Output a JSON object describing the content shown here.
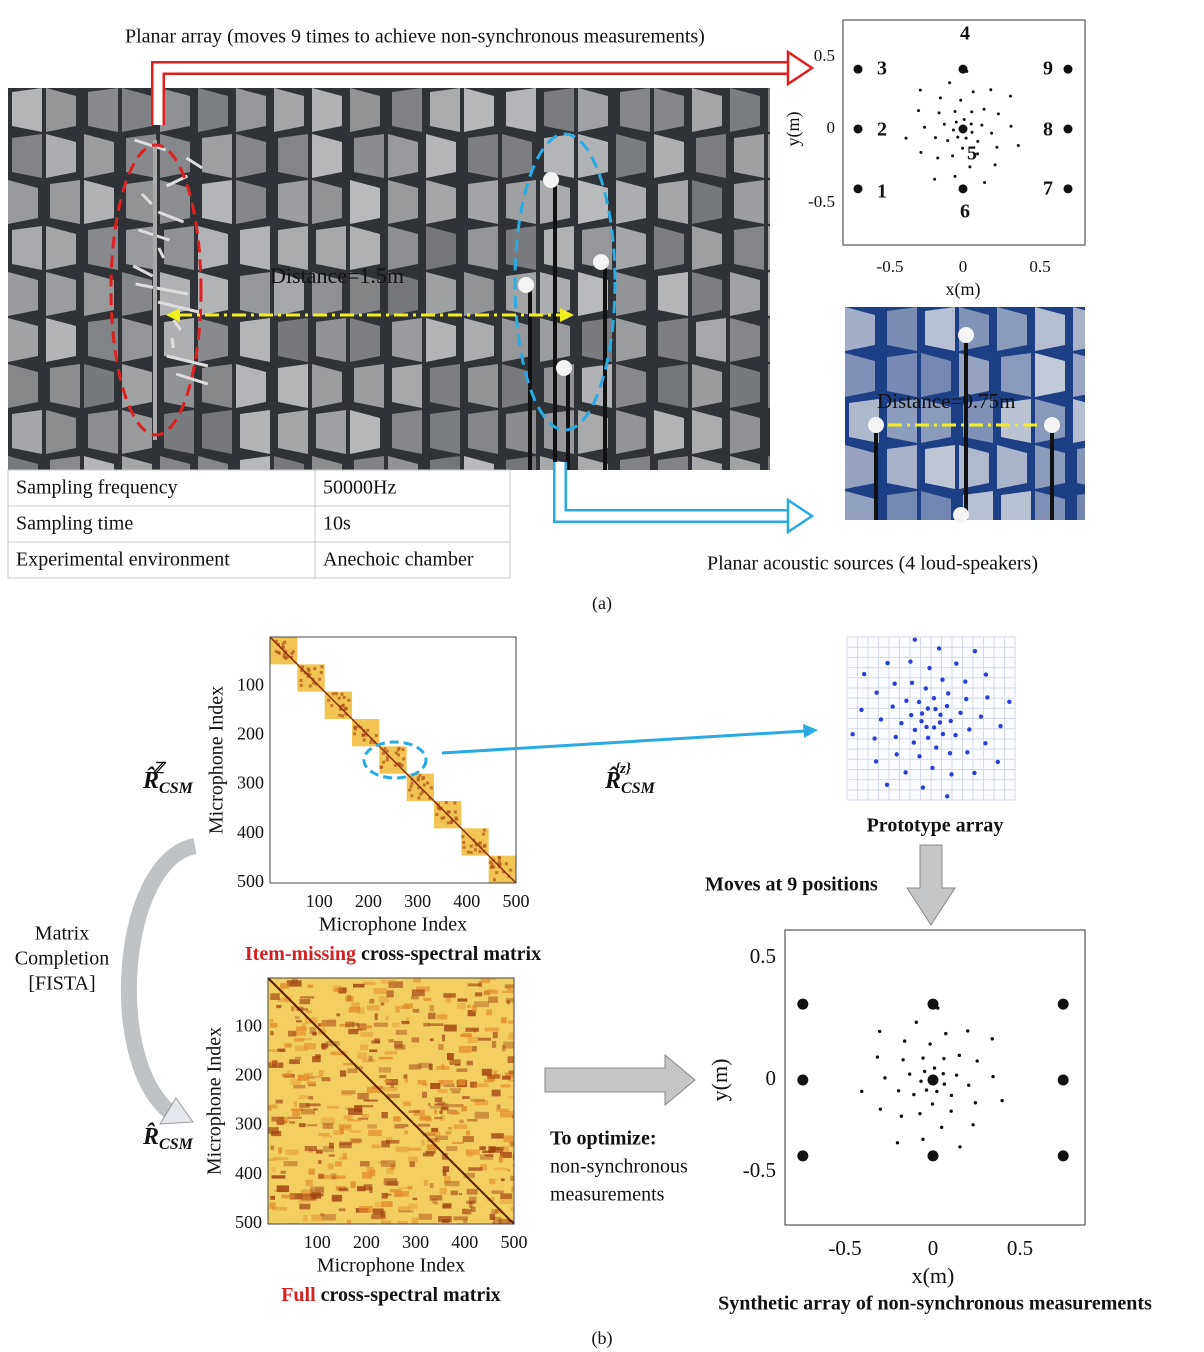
{
  "panel_a": {
    "array_caption": "Planar array (moves 9 times to achieve non-synchronous measurements)",
    "distance_label": "Distance=1.5m",
    "table": {
      "rows": [
        [
          "Sampling frequency",
          "50000Hz"
        ],
        [
          "Sampling time",
          "10s"
        ],
        [
          "Experimental environment",
          "Anechoic chamber"
        ]
      ]
    },
    "array_plot": {
      "xticks": [
        "-0.5",
        "0",
        "0.5"
      ],
      "yticks": [
        "0.5",
        "0",
        "-0.5"
      ],
      "xlabel": "x(m)",
      "ylabel": "y(m)",
      "position_labels": [
        "1",
        "2",
        "3",
        "4",
        "5",
        "6",
        "7",
        "8",
        "9"
      ]
    },
    "source_distance_label": "Distance=0.75m",
    "sources_caption": "Planar acoustic sources (4 loud-speakers)",
    "label": "(a)"
  },
  "panel_b": {
    "item_missing_matrix": {
      "ylabel": "Microphone Index",
      "xlabel": "Microphone Index",
      "ticks": [
        "100",
        "200",
        "300",
        "400",
        "500"
      ],
      "caption_highlight": "Item-missing",
      "caption_rest": " cross-spectral matrix",
      "symbol": {
        "base": "R̂",
        "sub": "CSM",
        "sup": "ℤ"
      }
    },
    "full_matrix": {
      "ylabel": "Microphone Index",
      "xlabel": "Microphone Index",
      "ticks": [
        "100",
        "200",
        "300",
        "400",
        "500"
      ],
      "caption_highlight": "Full",
      "caption_rest": " cross-spectral matrix",
      "symbol": {
        "base": "R̂",
        "sub": "CSM"
      }
    },
    "block_symbol": {
      "base": "R̂",
      "sub": "CSM",
      "sup": "{z}"
    },
    "prototype_caption": "Prototype array",
    "moves_label": "Moves at 9 positions",
    "completion_label": [
      "Matrix",
      "Completion",
      "[FISTA]"
    ],
    "optimize_label": [
      "To optimize:",
      "non-synchronous",
      "measurements"
    ],
    "synthetic_plot": {
      "xticks": [
        "-0.5",
        "0",
        "0.5"
      ],
      "yticks": [
        "0.5",
        "0",
        "-0.5"
      ],
      "xlabel": "x(m)",
      "ylabel": "y(m)"
    },
    "synthetic_caption": "Synthetic array of non-synchronous measurements",
    "label": "(b)"
  }
}
